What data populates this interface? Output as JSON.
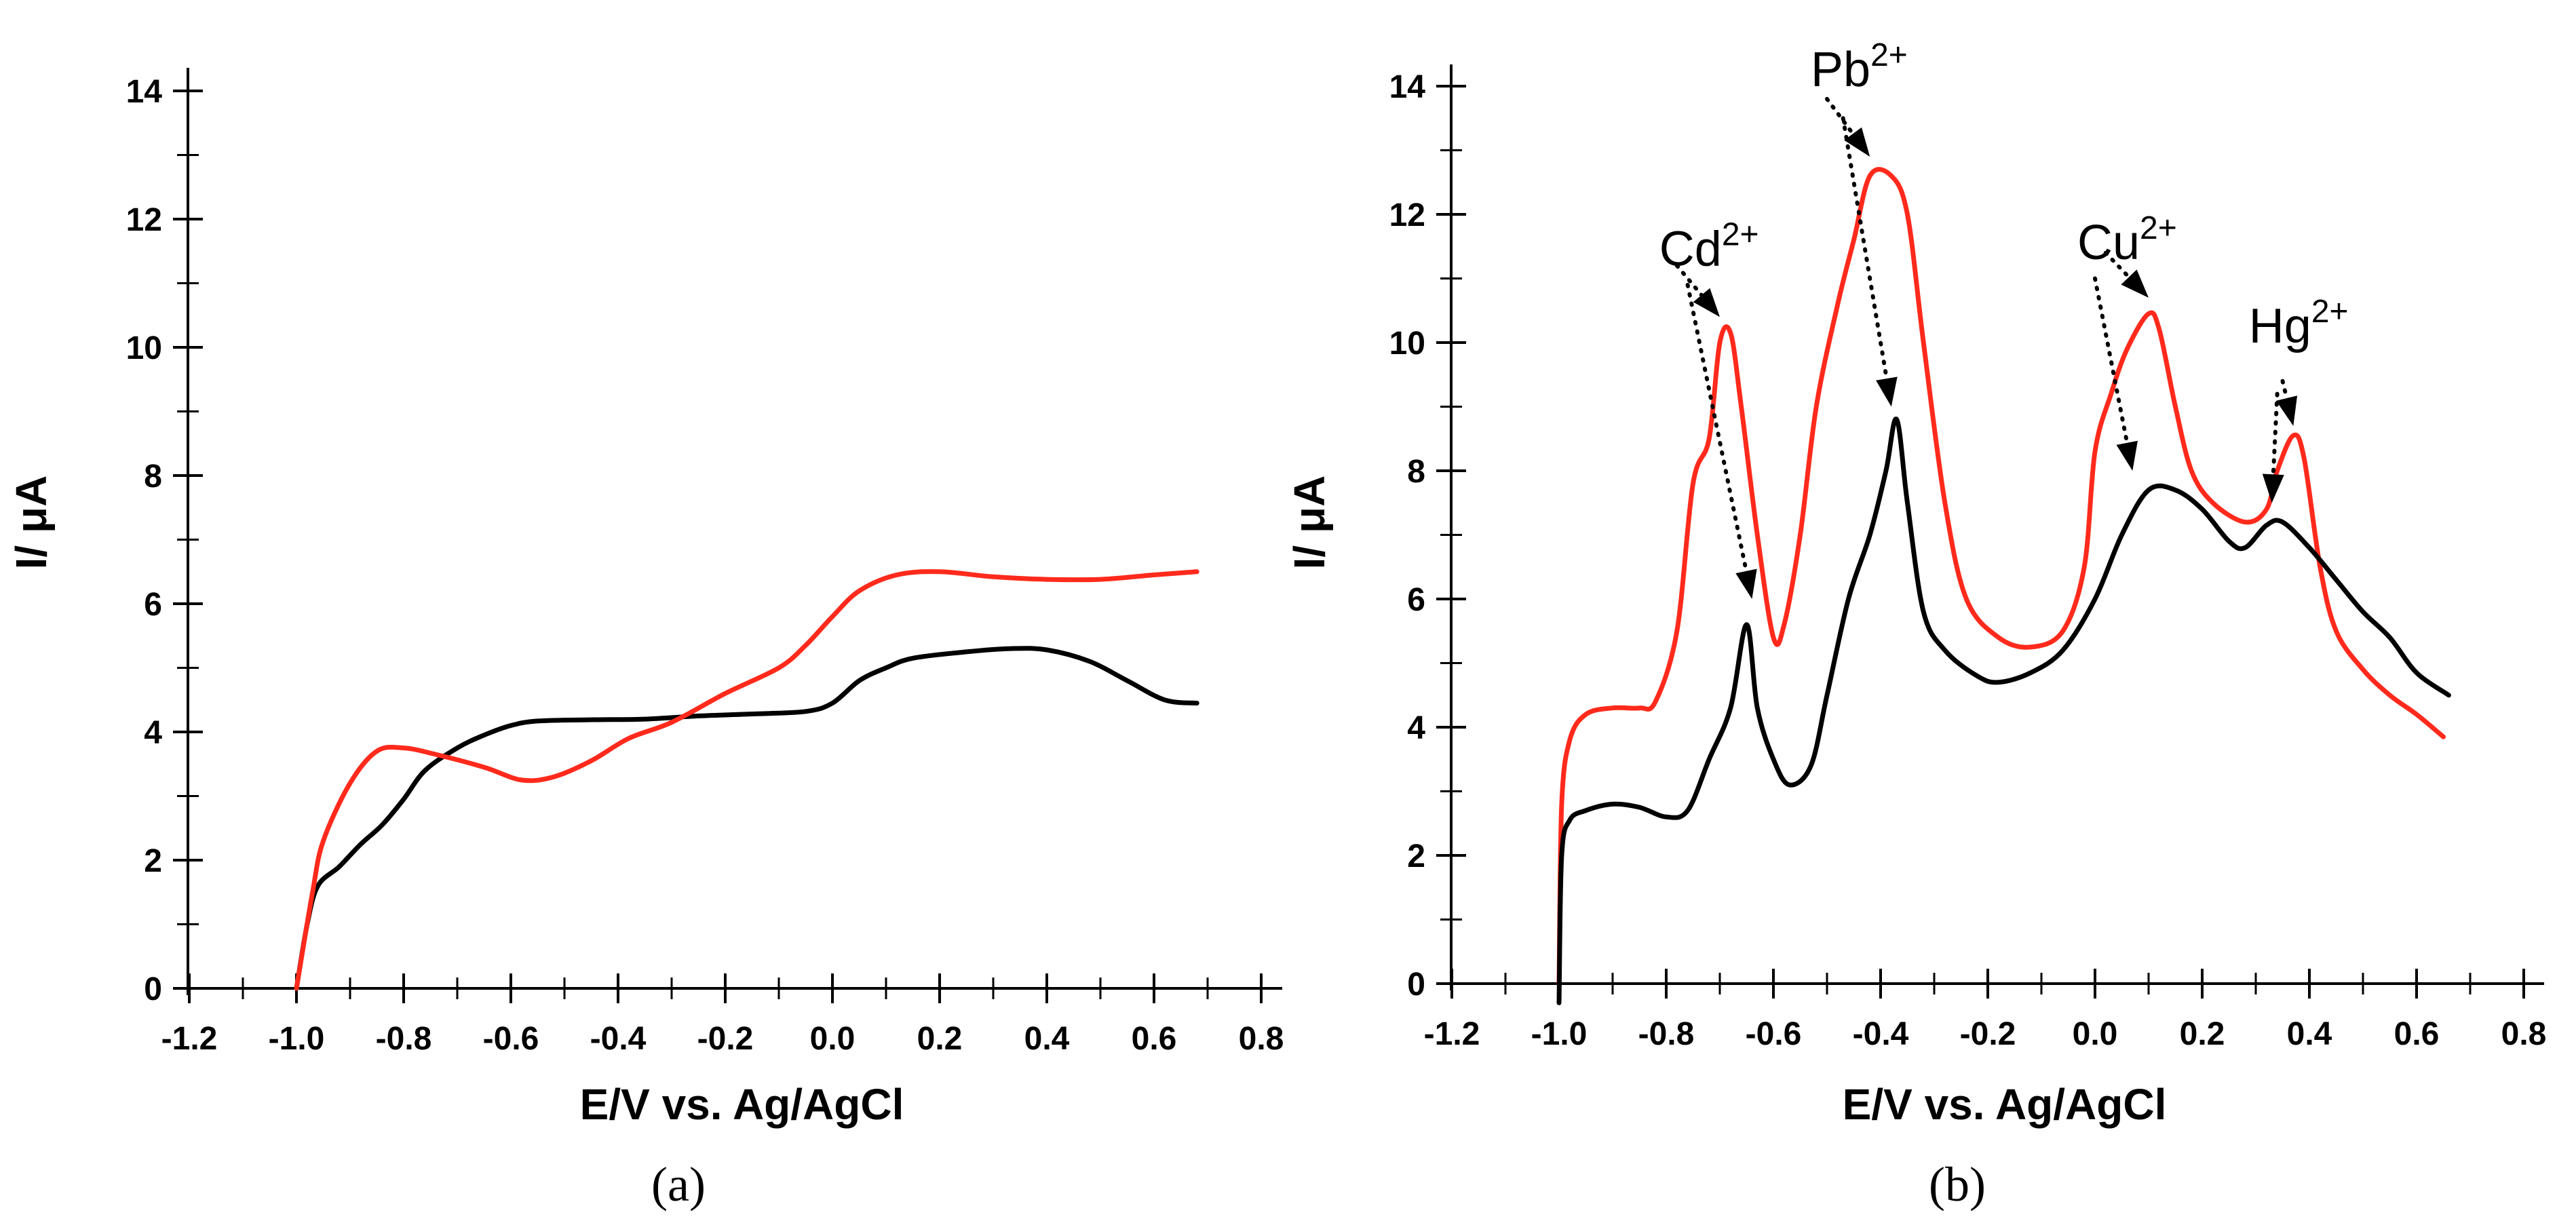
{
  "chart_data": [
    {
      "type": "line",
      "panel_label": "(a)",
      "xlabel": "E/V vs. Ag/AgCl",
      "ylabel": "I/ μA",
      "xlim": [
        -1.3,
        0.8
      ],
      "ylim": [
        0,
        14
      ],
      "xticks": [
        "-1.2",
        "-1.0",
        "-0.8",
        "-0.6",
        "-0.4",
        "-0.2",
        "0.0",
        "0.2",
        "0.4",
        "0.6",
        "0.8"
      ],
      "yticks": [
        "0",
        "2",
        "4",
        "6",
        "8",
        "10",
        "12",
        "14"
      ],
      "series": [
        {
          "name": "black",
          "color": "#000000",
          "points": [
            [
              -1.0,
              0
            ],
            [
              -0.98,
              1.0
            ],
            [
              -0.96,
              1.6
            ],
            [
              -0.92,
              1.9
            ],
            [
              -0.88,
              2.25
            ],
            [
              -0.84,
              2.55
            ],
            [
              -0.8,
              2.95
            ],
            [
              -0.76,
              3.4
            ],
            [
              -0.7,
              3.75
            ],
            [
              -0.65,
              3.95
            ],
            [
              -0.6,
              4.1
            ],
            [
              -0.55,
              4.17
            ],
            [
              -0.45,
              4.19
            ],
            [
              -0.35,
              4.2
            ],
            [
              -0.25,
              4.25
            ],
            [
              -0.15,
              4.28
            ],
            [
              -0.05,
              4.32
            ],
            [
              0.0,
              4.45
            ],
            [
              0.05,
              4.8
            ],
            [
              0.1,
              5.0
            ],
            [
              0.15,
              5.15
            ],
            [
              0.25,
              5.25
            ],
            [
              0.33,
              5.3
            ],
            [
              0.4,
              5.28
            ],
            [
              0.48,
              5.1
            ],
            [
              0.55,
              4.8
            ],
            [
              0.62,
              4.5
            ],
            [
              0.68,
              4.45
            ]
          ]
        },
        {
          "name": "red",
          "color": "#ff2a1c",
          "points": [
            [
              -1.0,
              0
            ],
            [
              -0.97,
              1.5
            ],
            [
              -0.95,
              2.3
            ],
            [
              -0.9,
              3.2
            ],
            [
              -0.85,
              3.7
            ],
            [
              -0.8,
              3.75
            ],
            [
              -0.74,
              3.65
            ],
            [
              -0.65,
              3.45
            ],
            [
              -0.58,
              3.25
            ],
            [
              -0.52,
              3.3
            ],
            [
              -0.45,
              3.55
            ],
            [
              -0.38,
              3.9
            ],
            [
              -0.3,
              4.15
            ],
            [
              -0.2,
              4.6
            ],
            [
              -0.1,
              5.0
            ],
            [
              -0.05,
              5.35
            ],
            [
              0.0,
              5.8
            ],
            [
              0.05,
              6.2
            ],
            [
              0.12,
              6.45
            ],
            [
              0.2,
              6.5
            ],
            [
              0.3,
              6.42
            ],
            [
              0.4,
              6.38
            ],
            [
              0.5,
              6.38
            ],
            [
              0.6,
              6.45
            ],
            [
              0.68,
              6.5
            ]
          ]
        }
      ]
    },
    {
      "type": "line",
      "panel_label": "(b)",
      "xlabel": "E/V vs. Ag/AgCl",
      "ylabel": "I/ μA",
      "xlim": [
        -1.3,
        0.8
      ],
      "ylim": [
        0,
        14
      ],
      "xticks": [
        "-1.2",
        "-1.0",
        "-0.8",
        "-0.6",
        "-0.4",
        "-0.2",
        "0.0",
        "0.2",
        "0.4",
        "0.6",
        "0.8"
      ],
      "yticks": [
        "0",
        "2",
        "4",
        "6",
        "8",
        "10",
        "12",
        "14"
      ],
      "annotations": [
        {
          "base": "Cd",
          "sup": "2+",
          "x": -0.72,
          "y": 11.2
        },
        {
          "base": "Pb",
          "sup": "2+",
          "x": -0.44,
          "y": 14.0
        },
        {
          "base": "Cu",
          "sup": "2+",
          "x": 0.06,
          "y": 11.3
        },
        {
          "base": "Hg",
          "sup": "2+",
          "x": 0.38,
          "y": 10.0
        }
      ],
      "arrows": [
        {
          "from": [
            -0.78,
            11.2
          ],
          "to": [
            -0.7,
            10.4
          ]
        },
        {
          "from": [
            -0.76,
            10.9
          ],
          "to": [
            -0.64,
            6.0
          ]
        },
        {
          "from": [
            -0.5,
            13.8
          ],
          "to": [
            -0.42,
            12.9
          ]
        },
        {
          "from": [
            -0.47,
            13.5
          ],
          "to": [
            -0.38,
            9.0
          ]
        },
        {
          "from": [
            0.02,
            11.4
          ],
          "to": [
            0.1,
            10.7
          ]
        },
        {
          "from": [
            0.0,
            11.0
          ],
          "to": [
            0.07,
            8.0
          ]
        },
        {
          "from": [
            0.35,
            9.4
          ],
          "to": [
            0.37,
            8.7
          ]
        },
        {
          "from": [
            0.34,
            9.2
          ],
          "to": [
            0.33,
            7.5
          ]
        }
      ],
      "series": [
        {
          "name": "red",
          "color": "#ff2a1c",
          "points": [
            [
              -1.0,
              0
            ],
            [
              -0.995,
              2.8
            ],
            [
              -0.98,
              3.8
            ],
            [
              -0.95,
              4.2
            ],
            [
              -0.9,
              4.3
            ],
            [
              -0.85,
              4.3
            ],
            [
              -0.82,
              4.4
            ],
            [
              -0.78,
              5.5
            ],
            [
              -0.75,
              7.8
            ],
            [
              -0.72,
              8.5
            ],
            [
              -0.7,
              10.0
            ],
            [
              -0.68,
              10.15
            ],
            [
              -0.66,
              9.0
            ],
            [
              -0.63,
              7.0
            ],
            [
              -0.6,
              5.4
            ],
            [
              -0.58,
              5.6
            ],
            [
              -0.55,
              7.0
            ],
            [
              -0.52,
              9.0
            ],
            [
              -0.48,
              10.6
            ],
            [
              -0.45,
              11.6
            ],
            [
              -0.42,
              12.6
            ],
            [
              -0.38,
              12.6
            ],
            [
              -0.35,
              12.0
            ],
            [
              -0.32,
              10.0
            ],
            [
              -0.28,
              7.5
            ],
            [
              -0.24,
              6.0
            ],
            [
              -0.18,
              5.4
            ],
            [
              -0.12,
              5.25
            ],
            [
              -0.06,
              5.5
            ],
            [
              -0.02,
              6.5
            ],
            [
              0.0,
              8.3
            ],
            [
              0.03,
              9.2
            ],
            [
              0.06,
              9.9
            ],
            [
              0.1,
              10.45
            ],
            [
              0.12,
              10.2
            ],
            [
              0.15,
              9.0
            ],
            [
              0.18,
              8.0
            ],
            [
              0.22,
              7.5
            ],
            [
              0.28,
              7.2
            ],
            [
              0.32,
              7.4
            ],
            [
              0.34,
              8.0
            ],
            [
              0.37,
              8.55
            ],
            [
              0.39,
              8.2
            ],
            [
              0.42,
              6.5
            ],
            [
              0.45,
              5.5
            ],
            [
              0.5,
              4.9
            ],
            [
              0.55,
              4.5
            ],
            [
              0.6,
              4.2
            ],
            [
              0.65,
              3.85
            ]
          ]
        },
        {
          "name": "black",
          "color": "#000000",
          "points": [
            [
              -1.0,
              -0.3
            ],
            [
              -0.995,
              2.0
            ],
            [
              -0.98,
              2.55
            ],
            [
              -0.95,
              2.7
            ],
            [
              -0.9,
              2.8
            ],
            [
              -0.85,
              2.75
            ],
            [
              -0.8,
              2.6
            ],
            [
              -0.76,
              2.7
            ],
            [
              -0.72,
              3.5
            ],
            [
              -0.68,
              4.3
            ],
            [
              -0.65,
              5.6
            ],
            [
              -0.63,
              4.3
            ],
            [
              -0.6,
              3.5
            ],
            [
              -0.57,
              3.1
            ],
            [
              -0.53,
              3.4
            ],
            [
              -0.5,
              4.5
            ],
            [
              -0.46,
              6.0
            ],
            [
              -0.42,
              7.0
            ],
            [
              -0.39,
              8.0
            ],
            [
              -0.37,
              8.8
            ],
            [
              -0.35,
              7.5
            ],
            [
              -0.32,
              5.8
            ],
            [
              -0.28,
              5.2
            ],
            [
              -0.22,
              4.8
            ],
            [
              -0.18,
              4.7
            ],
            [
              -0.12,
              4.85
            ],
            [
              -0.06,
              5.2
            ],
            [
              0.0,
              6.0
            ],
            [
              0.05,
              7.0
            ],
            [
              0.1,
              7.7
            ],
            [
              0.15,
              7.7
            ],
            [
              0.2,
              7.4
            ],
            [
              0.25,
              6.9
            ],
            [
              0.28,
              6.8
            ],
            [
              0.32,
              7.15
            ],
            [
              0.35,
              7.2
            ],
            [
              0.4,
              6.8
            ],
            [
              0.45,
              6.3
            ],
            [
              0.5,
              5.8
            ],
            [
              0.55,
              5.4
            ],
            [
              0.6,
              4.85
            ],
            [
              0.66,
              4.5
            ]
          ]
        }
      ]
    }
  ]
}
